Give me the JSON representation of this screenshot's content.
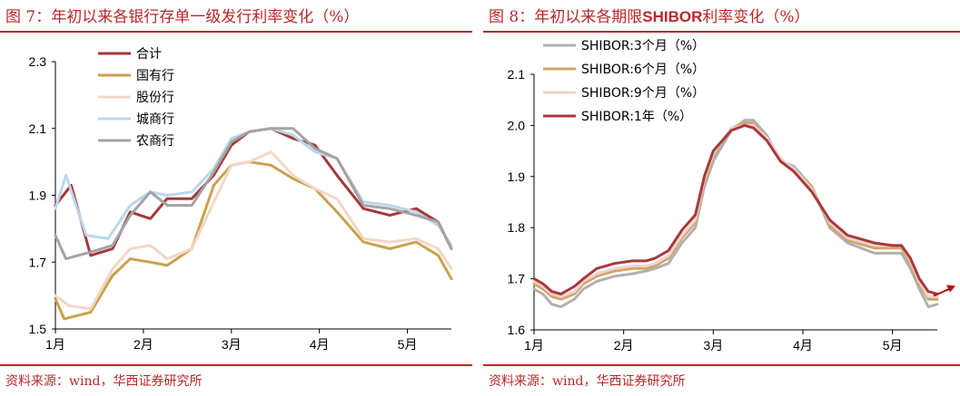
{
  "left": {
    "fig_label": "图 7：",
    "title": "年初以来各银行存单一级发行利率变化（%）",
    "source": "资料来源：wind，华西证券研究所"
  },
  "right": {
    "fig_label": "图 8：",
    "title_pre": "年初以来各期限",
    "title_bold": "SHIBOR",
    "title_post": "利率变化（%）",
    "source": "资料来源：wind，华西证券研究所"
  },
  "chart_data": [
    {
      "type": "line",
      "title": "年初以来各银行存单一级发行利率变化（%）",
      "ylim": [
        1.5,
        2.3
      ],
      "yticks": [
        "1.5",
        "1.7",
        "1.9",
        "2.1",
        "2.3"
      ],
      "xlim": [
        0,
        4.5
      ],
      "xticks": [
        {
          "x": 0,
          "label": "1月"
        },
        {
          "x": 1,
          "label": "2月"
        },
        {
          "x": 2,
          "label": "3月"
        },
        {
          "x": 3,
          "label": "4月"
        },
        {
          "x": 4,
          "label": "5月"
        }
      ],
      "legend_position": "top-left",
      "grid": false,
      "series": [
        {
          "name": "合计",
          "color": "#a5383a",
          "width": 3,
          "x": [
            0,
            0.18,
            0.4,
            0.65,
            0.85,
            1.08,
            1.27,
            1.55,
            1.8,
            2.0,
            2.2,
            2.45,
            2.7,
            2.95,
            3.2,
            3.5,
            3.8,
            4.1,
            4.35,
            4.5
          ],
          "y": [
            1.87,
            1.93,
            1.72,
            1.74,
            1.85,
            1.83,
            1.89,
            1.89,
            1.96,
            2.05,
            2.09,
            2.1,
            2.07,
            2.05,
            1.96,
            1.86,
            1.84,
            1.86,
            1.82,
            1.74
          ]
        },
        {
          "name": "国有行",
          "color": "#c9a24e",
          "width": 3,
          "x": [
            0,
            0.1,
            0.4,
            0.65,
            0.85,
            1.08,
            1.27,
            1.55,
            1.8,
            2.0,
            2.2,
            2.45,
            2.7,
            2.95,
            3.2,
            3.5,
            3.8,
            4.1,
            4.35,
            4.5
          ],
          "y": [
            1.59,
            1.53,
            1.55,
            1.66,
            1.71,
            1.7,
            1.69,
            1.74,
            1.93,
            1.99,
            2.0,
            1.99,
            1.95,
            1.92,
            1.85,
            1.76,
            1.74,
            1.76,
            1.72,
            1.65
          ]
        },
        {
          "name": "股份行",
          "color": "#f3d7c6",
          "width": 3,
          "x": [
            0,
            0.15,
            0.4,
            0.65,
            0.85,
            1.08,
            1.27,
            1.55,
            1.8,
            2.0,
            2.2,
            2.45,
            2.7,
            2.95,
            3.2,
            3.5,
            3.8,
            4.1,
            4.35,
            4.5
          ],
          "y": [
            1.6,
            1.57,
            1.56,
            1.68,
            1.74,
            1.75,
            1.71,
            1.74,
            1.88,
            1.99,
            2.0,
            2.03,
            1.96,
            1.92,
            1.89,
            1.77,
            1.76,
            1.77,
            1.74,
            1.68
          ]
        },
        {
          "name": "城商行",
          "color": "#bcd7eb",
          "width": 3,
          "x": [
            0,
            0.12,
            0.35,
            0.6,
            0.85,
            1.08,
            1.27,
            1.55,
            1.8,
            2.0,
            2.2,
            2.45,
            2.7,
            2.95,
            3.2,
            3.5,
            3.8,
            4.1,
            4.35,
            4.5
          ],
          "y": [
            1.86,
            1.96,
            1.78,
            1.77,
            1.87,
            1.91,
            1.9,
            1.91,
            1.98,
            2.07,
            2.09,
            2.1,
            2.08,
            2.03,
            2.01,
            1.88,
            1.87,
            1.85,
            1.81,
            1.75
          ]
        },
        {
          "name": "农商行",
          "color": "#a3a3a3",
          "width": 3,
          "x": [
            0,
            0.12,
            0.4,
            0.65,
            0.85,
            1.08,
            1.27,
            1.55,
            1.8,
            2.0,
            2.2,
            2.45,
            2.7,
            2.95,
            3.2,
            3.5,
            3.8,
            4.1,
            4.35,
            4.5
          ],
          "y": [
            1.78,
            1.71,
            1.73,
            1.75,
            1.84,
            1.91,
            1.87,
            1.87,
            1.97,
            2.06,
            2.09,
            2.1,
            2.1,
            2.04,
            2.01,
            1.87,
            1.86,
            1.84,
            1.82,
            1.74
          ]
        }
      ]
    },
    {
      "type": "line",
      "title": "年初以来各期限SHIBOR利率变化（%）",
      "ylim": [
        1.6,
        2.1
      ],
      "yticks": [
        "1.6",
        "1.7",
        "1.8",
        "1.9",
        "2.0",
        "2.1"
      ],
      "xlim": [
        0,
        4.5
      ],
      "xticks": [
        {
          "x": 0,
          "label": "1月"
        },
        {
          "x": 1,
          "label": "2月"
        },
        {
          "x": 2,
          "label": "3月"
        },
        {
          "x": 3,
          "label": "4月"
        },
        {
          "x": 4,
          "label": "5月"
        }
      ],
      "legend_position": "top-left",
      "grid": false,
      "annotation": "trend-arrow",
      "series": [
        {
          "name": "SHIBOR:3个月（%）",
          "color": "#b0b0b0",
          "width": 3,
          "x": [
            0,
            0.1,
            0.2,
            0.3,
            0.45,
            0.55,
            0.7,
            0.9,
            1.1,
            1.25,
            1.35,
            1.5,
            1.65,
            1.8,
            1.9,
            2.0,
            2.2,
            2.35,
            2.45,
            2.6,
            2.75,
            2.9,
            3.1,
            3.3,
            3.5,
            3.8,
            4.0,
            4.1,
            4.2,
            4.3,
            4.4,
            4.5
          ],
          "y": [
            1.68,
            1.67,
            1.65,
            1.645,
            1.66,
            1.68,
            1.695,
            1.705,
            1.71,
            1.715,
            1.72,
            1.73,
            1.77,
            1.8,
            1.88,
            1.93,
            1.99,
            2.01,
            2.01,
            1.98,
            1.93,
            1.92,
            1.88,
            1.8,
            1.77,
            1.75,
            1.75,
            1.75,
            1.72,
            1.68,
            1.645,
            1.65
          ]
        },
        {
          "name": "SHIBOR:6个月（%）",
          "color": "#cfa763",
          "width": 3,
          "x": [
            0,
            0.1,
            0.2,
            0.3,
            0.45,
            0.55,
            0.7,
            0.9,
            1.1,
            1.25,
            1.35,
            1.5,
            1.65,
            1.8,
            1.9,
            2.0,
            2.2,
            2.35,
            2.45,
            2.6,
            2.75,
            2.9,
            3.1,
            3.3,
            3.5,
            3.8,
            4.0,
            4.1,
            4.2,
            4.3,
            4.4,
            4.5
          ],
          "y": [
            1.69,
            1.68,
            1.665,
            1.66,
            1.67,
            1.69,
            1.705,
            1.715,
            1.72,
            1.72,
            1.725,
            1.74,
            1.78,
            1.81,
            1.89,
            1.94,
            1.995,
            2.005,
            2.005,
            1.975,
            1.935,
            1.915,
            1.88,
            1.805,
            1.775,
            1.76,
            1.76,
            1.76,
            1.73,
            1.69,
            1.66,
            1.66
          ]
        },
        {
          "name": "SHIBOR:9个月（%）",
          "color": "#f1d3d3",
          "width": 3,
          "x": [
            0,
            0.1,
            0.2,
            0.3,
            0.45,
            0.55,
            0.7,
            0.9,
            1.1,
            1.25,
            1.35,
            1.5,
            1.65,
            1.8,
            1.9,
            2.0,
            2.2,
            2.35,
            2.45,
            2.6,
            2.75,
            2.9,
            3.1,
            3.3,
            3.5,
            3.8,
            4.0,
            4.1,
            4.2,
            4.3,
            4.4,
            4.5
          ],
          "y": [
            1.695,
            1.685,
            1.67,
            1.665,
            1.675,
            1.695,
            1.71,
            1.72,
            1.725,
            1.725,
            1.73,
            1.745,
            1.785,
            1.815,
            1.895,
            1.945,
            1.995,
            2.0,
            2.0,
            1.975,
            1.935,
            1.915,
            1.875,
            1.81,
            1.78,
            1.765,
            1.765,
            1.765,
            1.735,
            1.695,
            1.665,
            1.665
          ]
        },
        {
          "name": "SHIBOR:1年（%）",
          "color": "#a8393b",
          "width": 3,
          "x": [
            0,
            0.1,
            0.2,
            0.3,
            0.45,
            0.55,
            0.7,
            0.9,
            1.1,
            1.25,
            1.35,
            1.5,
            1.65,
            1.8,
            1.9,
            2.0,
            2.2,
            2.35,
            2.45,
            2.6,
            2.75,
            2.9,
            3.1,
            3.3,
            3.5,
            3.8,
            4.0,
            4.1,
            4.2,
            4.3,
            4.4,
            4.5
          ],
          "y": [
            1.7,
            1.69,
            1.675,
            1.67,
            1.685,
            1.7,
            1.72,
            1.73,
            1.735,
            1.735,
            1.74,
            1.755,
            1.795,
            1.825,
            1.9,
            1.95,
            1.99,
            2.0,
            1.995,
            1.97,
            1.93,
            1.91,
            1.87,
            1.815,
            1.785,
            1.77,
            1.765,
            1.765,
            1.74,
            1.7,
            1.675,
            1.67
          ]
        }
      ]
    }
  ]
}
